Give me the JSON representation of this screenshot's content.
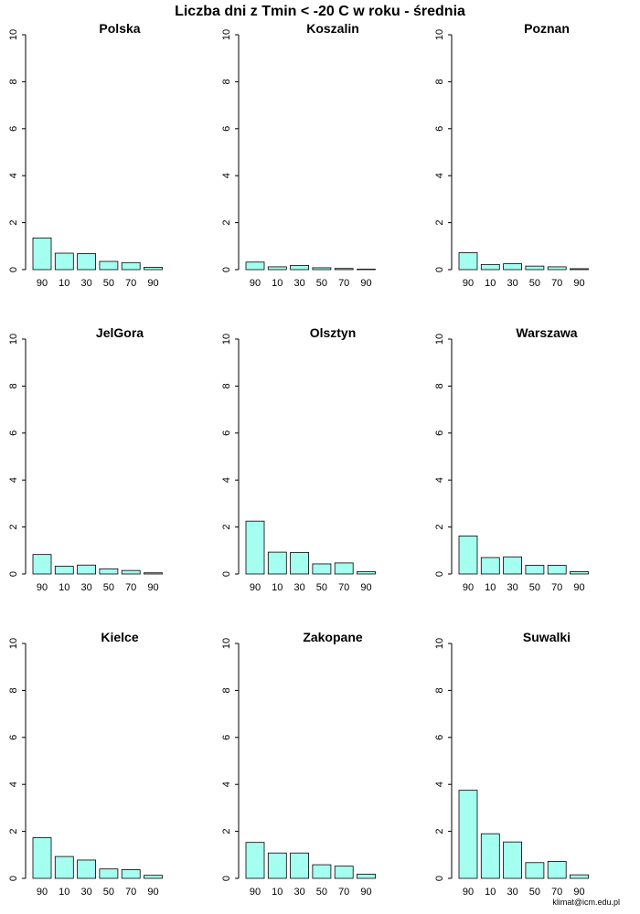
{
  "title": "Liczba dni z Tmin < -20 C w roku - średnia",
  "credit": "klimat@icm.edu.pl",
  "colors": {
    "bar_fill": "#a5fff0",
    "bar_stroke": "#000000",
    "axis": "#000000"
  },
  "chart_data": [
    {
      "type": "bar",
      "title": "Polska",
      "categories": [
        "90",
        "10",
        "30",
        "50",
        "70",
        "90"
      ],
      "values": [
        1.35,
        0.7,
        0.68,
        0.35,
        0.3,
        0.1
      ],
      "ylim": [
        0,
        10
      ],
      "yticks": [
        "0",
        "2",
        "4",
        "6",
        "8",
        "10"
      ]
    },
    {
      "type": "bar",
      "title": "Koszalin",
      "categories": [
        "90",
        "10",
        "30",
        "50",
        "70",
        "90"
      ],
      "values": [
        0.32,
        0.12,
        0.18,
        0.08,
        0.05,
        0.02
      ],
      "ylim": [
        0,
        10
      ],
      "yticks": [
        "0",
        "2",
        "4",
        "6",
        "8",
        "10"
      ]
    },
    {
      "type": "bar",
      "title": "Poznan",
      "categories": [
        "90",
        "10",
        "30",
        "50",
        "70",
        "90"
      ],
      "values": [
        0.72,
        0.22,
        0.25,
        0.15,
        0.12,
        0.04
      ],
      "ylim": [
        0,
        10
      ],
      "yticks": [
        "0",
        "2",
        "4",
        "6",
        "8",
        "10"
      ]
    },
    {
      "type": "bar",
      "title": "JelGora",
      "categories": [
        "90",
        "10",
        "30",
        "50",
        "70",
        "90"
      ],
      "values": [
        0.83,
        0.33,
        0.38,
        0.22,
        0.15,
        0.05
      ],
      "ylim": [
        0,
        10
      ],
      "yticks": [
        "0",
        "2",
        "4",
        "6",
        "8",
        "10"
      ]
    },
    {
      "type": "bar",
      "title": "Olsztyn",
      "categories": [
        "90",
        "10",
        "30",
        "50",
        "70",
        "90"
      ],
      "values": [
        2.25,
        0.93,
        0.92,
        0.43,
        0.47,
        0.1
      ],
      "ylim": [
        0,
        10
      ],
      "yticks": [
        "0",
        "2",
        "4",
        "6",
        "8",
        "10"
      ]
    },
    {
      "type": "bar",
      "title": "Warszawa",
      "categories": [
        "90",
        "10",
        "30",
        "50",
        "70",
        "90"
      ],
      "values": [
        1.62,
        0.7,
        0.73,
        0.37,
        0.37,
        0.1
      ],
      "ylim": [
        0,
        10
      ],
      "yticks": [
        "0",
        "2",
        "4",
        "6",
        "8",
        "10"
      ]
    },
    {
      "type": "bar",
      "title": "Kielce",
      "categories": [
        "90",
        "10",
        "30",
        "50",
        "70",
        "90"
      ],
      "values": [
        1.73,
        0.93,
        0.78,
        0.4,
        0.37,
        0.13
      ],
      "ylim": [
        0,
        10
      ],
      "yticks": [
        "0",
        "2",
        "4",
        "6",
        "8",
        "10"
      ]
    },
    {
      "type": "bar",
      "title": "Zakopane",
      "categories": [
        "90",
        "10",
        "30",
        "50",
        "70",
        "90"
      ],
      "values": [
        1.53,
        1.08,
        1.08,
        0.58,
        0.52,
        0.18
      ],
      "ylim": [
        0,
        10
      ],
      "yticks": [
        "0",
        "2",
        "4",
        "6",
        "8",
        "10"
      ]
    },
    {
      "type": "bar",
      "title": "Suwalki",
      "categories": [
        "90",
        "10",
        "30",
        "50",
        "70",
        "90"
      ],
      "values": [
        3.75,
        1.9,
        1.55,
        0.67,
        0.72,
        0.15
      ],
      "ylim": [
        0,
        10
      ],
      "yticks": [
        "0",
        "2",
        "4",
        "6",
        "8",
        "10"
      ]
    }
  ]
}
